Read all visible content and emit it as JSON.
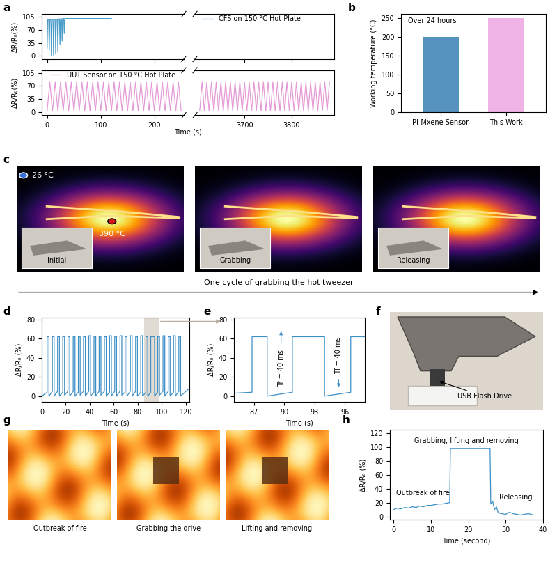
{
  "chart_data": [
    {
      "panel": "a",
      "type": "line",
      "ylabel": "ΔR/R₀(%)",
      "legend": "upper left",
      "xlim": [
        -10,
        255
      ],
      "xticks": [
        0,
        100,
        200
      ],
      "ylim": [
        -8,
        112
      ],
      "yticks": [
        0,
        35,
        70,
        105
      ],
      "tick_labels": "y",
      "series": [
        {
          "name": "CFS on 150 °C Hot Plate",
          "color": "#4a9cc9",
          "x": [
            0,
            1,
            3,
            4,
            5,
            7,
            8,
            9,
            11,
            12,
            13,
            15,
            16,
            17,
            19,
            20,
            21,
            23,
            24,
            25,
            27,
            28,
            29,
            31,
            32,
            33,
            35,
            36,
            120
          ],
          "values": [
            20,
            97,
            97,
            15,
            97,
            97,
            0,
            98,
            98,
            2,
            98,
            98,
            5,
            98,
            98,
            10,
            99,
            99,
            30,
            99,
            99,
            40,
            100,
            100,
            60,
            100,
            100,
            100,
            100
          ]
        }
      ]
    },
    {
      "type": "line",
      "xlim": [
        3595,
        3890
      ],
      "xticks": [
        3700,
        3800
      ],
      "ylim": [
        -8,
        112
      ],
      "tick_labels": false,
      "series": []
    },
    {
      "type": "line",
      "ylabel": "ΔR/R₀(%)",
      "xlabel": "Time (s)",
      "legend": "upper center",
      "xlim": [
        -10,
        255
      ],
      "xticks": [
        0,
        100,
        200
      ],
      "ylim": [
        -8,
        112
      ],
      "yticks": [
        0,
        35,
        70,
        105
      ],
      "series": [
        {
          "name": "UUT Sensor on 150 °C Hot Plate",
          "color": "#e59ad6",
          "x": [
            0,
            5,
            10,
            15,
            20,
            25,
            30,
            35,
            40,
            45,
            50,
            55,
            60,
            65,
            70,
            75,
            80,
            85,
            90,
            95,
            100,
            105,
            110,
            115,
            120,
            125,
            130,
            135,
            140,
            145,
            150,
            155,
            160,
            165,
            170,
            175,
            180,
            185,
            190,
            195,
            200,
            205,
            210,
            215,
            220,
            225,
            230,
            235,
            240,
            245,
            250
          ],
          "values": [
            3,
            80,
            3,
            80,
            3,
            80,
            3,
            80,
            3,
            80,
            3,
            80,
            3,
            80,
            3,
            80,
            3,
            80,
            3,
            80,
            3,
            80,
            3,
            80,
            3,
            80,
            3,
            80,
            3,
            80,
            3,
            80,
            3,
            80,
            3,
            80,
            3,
            80,
            3,
            80,
            3,
            80,
            3,
            80,
            3,
            80,
            3,
            80,
            3,
            80,
            3
          ]
        }
      ]
    },
    {
      "type": "line",
      "xlim": [
        3595,
        3890
      ],
      "xticks": [
        3700,
        3800
      ],
      "ylim": [
        -8,
        112
      ],
      "tick_labels": "x",
      "series": [
        {
          "color": "#e59ad6",
          "x": [
            3605,
            3610,
            3615,
            3620,
            3625,
            3630,
            3635,
            3640,
            3645,
            3650,
            3655,
            3660,
            3665,
            3670,
            3675,
            3680,
            3685,
            3690,
            3695,
            3700,
            3705,
            3710,
            3715,
            3720,
            3725,
            3730,
            3735,
            3740,
            3745,
            3750,
            3755,
            3760,
            3765,
            3770,
            3775,
            3780,
            3785,
            3790,
            3795,
            3800,
            3805,
            3810,
            3815,
            3820,
            3825,
            3830,
            3835,
            3840,
            3845,
            3850,
            3855,
            3860,
            3865,
            3870,
            3875,
            3880
          ],
          "values": [
            3,
            80,
            3,
            80,
            3,
            80,
            3,
            80,
            3,
            80,
            3,
            80,
            3,
            80,
            3,
            80,
            3,
            80,
            3,
            80,
            3,
            80,
            3,
            80,
            3,
            80,
            3,
            80,
            3,
            80,
            3,
            80,
            3,
            80,
            3,
            80,
            3,
            80,
            3,
            80,
            3,
            80,
            3,
            80,
            3,
            80,
            3,
            80,
            3,
            80,
            3,
            80,
            3,
            80,
            3,
            80
          ]
        }
      ]
    },
    {
      "panel": "b",
      "type": "bar",
      "categories": [
        "PI-Mxene Sensor",
        "This Work"
      ],
      "values": [
        200,
        250
      ],
      "colors": [
        "#5592be",
        "#f0b3e6"
      ],
      "ylim": [
        0,
        260
      ],
      "yticks": [
        0,
        50,
        100,
        150,
        200,
        250
      ],
      "ylabel": "Working temperature (°C)",
      "annotation": "Over 24 hours"
    },
    {
      "panel": "d",
      "type": "line",
      "xlabel": "Time (s)",
      "ylabel": "ΔR/R₀ (%)",
      "xlim": [
        0,
        123
      ],
      "xticks": [
        0,
        20,
        40,
        60,
        80,
        100,
        120
      ],
      "ylim": [
        -6,
        82
      ],
      "yticks": [
        0,
        20,
        40,
        60,
        80
      ],
      "series": [
        {
          "color": "#3d8fc6",
          "x": [
            0,
            4.5,
            4.5,
            6.0,
            6.0,
            8.8,
            8.8,
            10.3,
            10.3,
            13.2,
            13.2,
            14.7,
            14.7,
            17.5,
            17.5,
            19.0,
            19.0,
            21.8,
            21.8,
            23.3,
            23.3,
            26.2,
            26.2,
            27.7,
            27.7,
            30.5,
            30.5,
            32.0,
            32.0,
            34.8,
            34.8,
            36.3,
            36.3,
            39.2,
            39.2,
            40.7,
            40.7,
            43.5,
            43.5,
            45.0,
            45.0,
            47.8,
            47.8,
            49.3,
            49.3,
            52.2,
            52.2,
            53.7,
            53.7,
            56.5,
            56.5,
            58.0,
            58.0,
            60.8,
            60.8,
            62.3,
            62.3,
            65.2,
            65.2,
            66.7,
            66.7,
            69.5,
            69.5,
            71.0,
            71.0,
            73.8,
            73.8,
            75.3,
            75.3,
            78.2,
            78.2,
            79.7,
            79.7,
            82.5,
            82.5,
            84.0,
            84.0,
            86.8,
            86.8,
            88.3,
            88.3,
            90.8,
            90.8,
            94.0,
            94.0,
            96.6,
            96.6,
            98.1,
            98.1,
            101.0,
            101.0,
            102.5,
            102.5,
            105.4,
            105.4,
            106.9,
            106.9,
            109.8,
            109.8,
            111.3,
            111.3,
            114.2,
            114.2,
            115.7,
            115.7,
            122
          ],
          "values": [
            0,
            4,
            62,
            62,
            0,
            5,
            62,
            62,
            0,
            5,
            62,
            62,
            0,
            4,
            62,
            62,
            1,
            5,
            62,
            62,
            0,
            5,
            62,
            62,
            0,
            4,
            62,
            62,
            1,
            5,
            62,
            62,
            0,
            5,
            63,
            63,
            0,
            4,
            62,
            62,
            0,
            5,
            62,
            62,
            1,
            5,
            62,
            62,
            0,
            4,
            63,
            63,
            0,
            5,
            62,
            62,
            0,
            5,
            63,
            63,
            1,
            4,
            62,
            62,
            0,
            5,
            63,
            63,
            0,
            5,
            62,
            62,
            0,
            4,
            63,
            63,
            0,
            4,
            62,
            62,
            0,
            4,
            62,
            62,
            0,
            4,
            62,
            62,
            1,
            5,
            63,
            63,
            0,
            5,
            62,
            62,
            0,
            4,
            63,
            63,
            0,
            5,
            62,
            62,
            0,
            7
          ]
        }
      ]
    },
    {
      "panel": "e",
      "type": "line",
      "xlabel": "Time (s)",
      "ylabel": "ΔR/R₀ (%)",
      "xlim": [
        85,
        98
      ],
      "xticks": [
        87,
        90,
        93,
        96
      ],
      "ylim": [
        -6,
        82
      ],
      "yticks": [
        0,
        20,
        40,
        60,
        80
      ],
      "annotations": [
        "Tr = 40 ms",
        "Tf = 40 ms"
      ],
      "series": [
        {
          "color": "#3d8fc6",
          "x": [
            85,
            86.8,
            86.8,
            88.3,
            88.3,
            90.8,
            90.8,
            94.0,
            94.0,
            96.6,
            96.6,
            98
          ],
          "values": [
            3,
            4,
            62,
            62,
            0,
            4,
            62,
            62,
            0,
            4,
            62,
            62
          ]
        }
      ]
    },
    {
      "panel": "h",
      "type": "line",
      "xlabel": "Time (second)",
      "ylabel": "ΔR/R₀ (%)",
      "xlim": [
        -1,
        40
      ],
      "xticks": [
        0,
        10,
        20,
        30,
        40
      ],
      "ylim": [
        -5,
        125
      ],
      "yticks": [
        0,
        20,
        40,
        60,
        80,
        100,
        120
      ],
      "annotations": [
        "Outbreak of fire",
        "Grabbing, lifting and removing",
        "Releasing"
      ],
      "series": [
        {
          "color": "#3d8fc6",
          "x": [
            0,
            1,
            2,
            3,
            4,
            5,
            6,
            7,
            8,
            9,
            10,
            11,
            12,
            13,
            14,
            15,
            15.2,
            20,
            25.8,
            26,
            26.5,
            27,
            27.5,
            28,
            29,
            30,
            31,
            32,
            33,
            34,
            35,
            36,
            37
          ],
          "values": [
            10,
            12,
            11,
            13,
            12,
            14,
            13,
            15,
            14,
            16,
            16,
            17,
            18,
            18,
            19,
            20,
            98,
            98,
            98,
            18,
            22,
            10,
            14,
            5,
            4,
            3,
            6,
            4,
            3,
            2,
            3,
            4,
            3
          ]
        }
      ]
    }
  ],
  "images": [
    {
      "panel": "c",
      "ambient": "26 °C",
      "hotspot": "390 °C",
      "frames": [
        "Initial",
        "Grabbing",
        "Releasing"
      ],
      "caption": "One cycle of grabbing the hot tweezer"
    },
    {
      "panel": "f",
      "annotation": "USB Flash Drive"
    },
    {
      "panel": "g",
      "frames": [
        "Outbreak of fire",
        "Grabbing the drive",
        "Lifting and removing"
      ]
    }
  ]
}
